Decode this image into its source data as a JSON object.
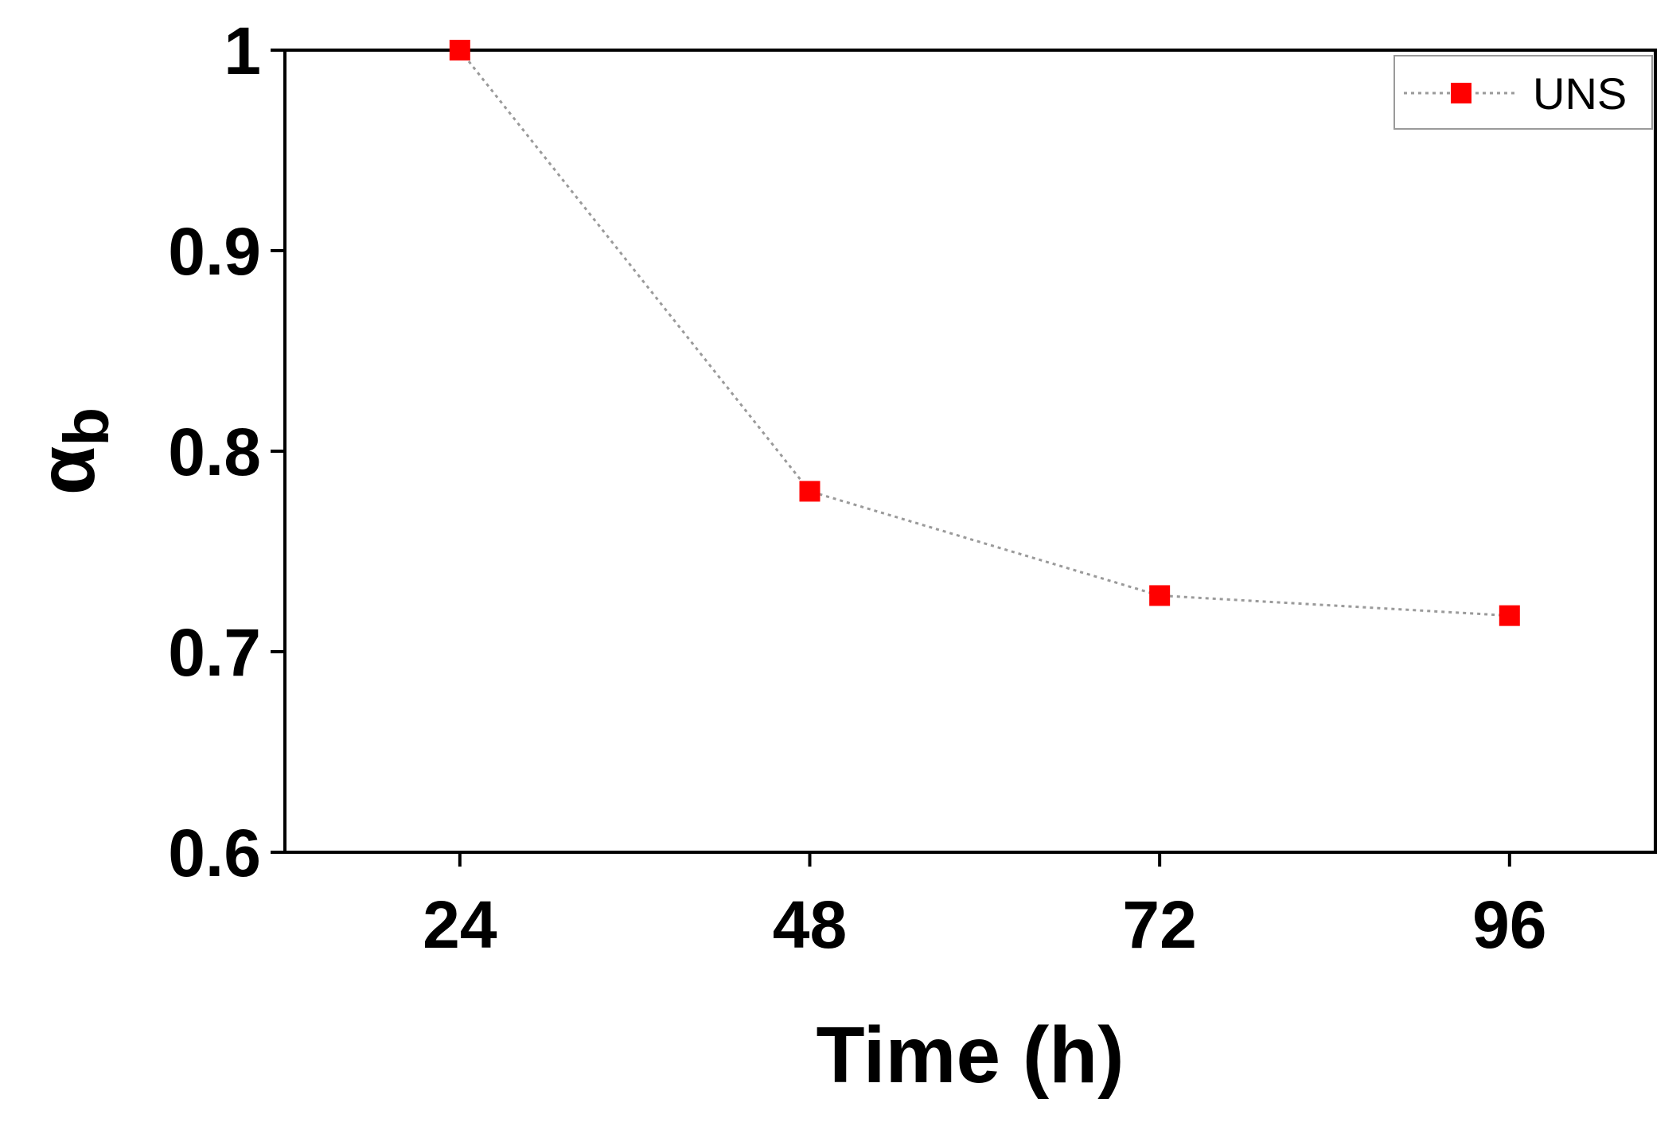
{
  "chart_data": {
    "type": "line",
    "xlabel": "Time (h)",
    "ylabel": "α",
    "ylabel_subscript": "b",
    "x": [
      24,
      48,
      72,
      96
    ],
    "x_tick_labels": [
      "24",
      "48",
      "72",
      "96"
    ],
    "y_ticks": [
      0.6,
      0.7,
      0.8,
      0.9,
      1
    ],
    "y_tick_labels": [
      "0.6",
      "0.7",
      "0.8",
      "0.9",
      "1"
    ],
    "xlim": [
      12,
      106
    ],
    "ylim": [
      0.6,
      1.0
    ],
    "grid": false,
    "legend_position": "top-right",
    "series": [
      {
        "name": "UNS",
        "values": [
          1.0,
          0.78,
          0.728,
          0.718
        ],
        "color": "#ff0000",
        "line_color": "#9a9a9a",
        "line_style": "dotted",
        "marker": "square"
      }
    ]
  }
}
